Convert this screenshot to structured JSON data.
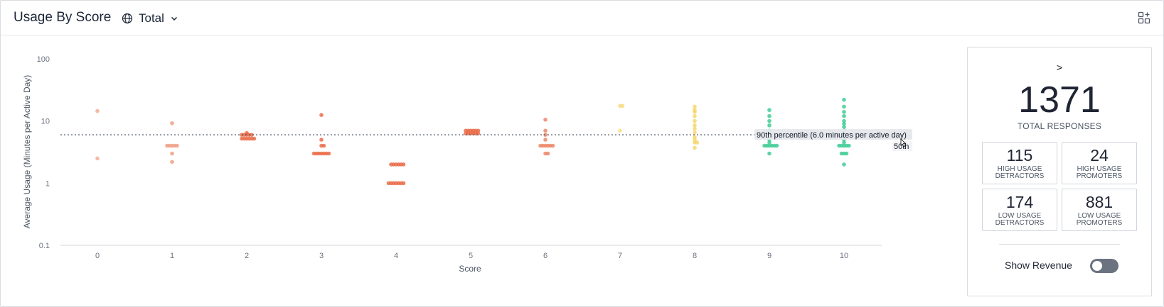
{
  "header": {
    "title": "Usage By Score",
    "scope_label": "Total"
  },
  "chart_data": {
    "type": "scatter",
    "xlabel": "Score",
    "ylabel": "Average Usage (Minutes per Active Day)",
    "x_ticks": [
      "0",
      "1",
      "2",
      "3",
      "4",
      "5",
      "6",
      "7",
      "8",
      "9",
      "10"
    ],
    "y_scale": "log",
    "ylim": [
      0.1,
      100
    ],
    "y_ticks": [
      "0.1",
      "1",
      "10",
      "100"
    ],
    "grid": false,
    "reference_line": {
      "value": 6.0,
      "label": "90th percentile (6.0 minutes per active day)"
    },
    "reference_line_2_label": "50th",
    "series": [
      {
        "x": 0,
        "color": "#f2a78f",
        "y": [
          14.5,
          2.5
        ]
      },
      {
        "x": 1,
        "color": "#ee9a7e",
        "y": [
          9.2,
          4,
          4,
          4,
          4,
          4,
          3,
          2.2
        ]
      },
      {
        "x": 2,
        "color": "#e8643e",
        "y": [
          6.4,
          6,
          6,
          6,
          6,
          6,
          5.2,
          5.2,
          5.2,
          5.2,
          5.2,
          5.2
        ]
      },
      {
        "x": 3,
        "color": "#e8643e",
        "y": [
          12.5,
          5,
          4,
          4,
          3,
          3,
          3,
          3,
          3,
          3,
          3
        ]
      },
      {
        "x": 4,
        "color": "#e8643e",
        "y": [
          2,
          2,
          2,
          2,
          2,
          2,
          1,
          1,
          1,
          1,
          1,
          1,
          1
        ]
      },
      {
        "x": 5,
        "color": "#e8643e",
        "y": [
          7,
          7,
          7,
          7,
          7,
          7,
          6.3,
          6.3,
          6.3,
          6.3,
          6.3,
          6.3
        ]
      },
      {
        "x": 6,
        "color": "#ec8060",
        "y": [
          10.5,
          7,
          6,
          5,
          4,
          4,
          4,
          4,
          4,
          4,
          3,
          3
        ]
      },
      {
        "x": 7,
        "color": "#f7db7a",
        "y": [
          17.5,
          17.5,
          7
        ]
      },
      {
        "x": 8,
        "color": "#f5d567",
        "y": [
          17,
          15,
          14,
          12,
          10,
          8.5,
          7.5,
          6.5,
          5.5,
          5,
          4.5,
          4.5,
          3.7
        ]
      },
      {
        "x": 9,
        "color": "#34c98e",
        "y": [
          15,
          12,
          10,
          8.5,
          7,
          6,
          5,
          4.5,
          4,
          4,
          4,
          4,
          4,
          4,
          3
        ]
      },
      {
        "x": 10,
        "color": "#34c98e",
        "y": [
          22,
          17,
          14,
          12,
          10,
          9,
          8,
          7,
          6,
          5,
          4.5,
          4,
          4,
          4,
          4,
          4,
          3,
          3,
          3,
          2
        ]
      }
    ]
  },
  "side": {
    "caret": ">",
    "total": "1371",
    "total_label": "TOTAL RESPONSES",
    "boxes": [
      {
        "num": "115",
        "line1": "HIGH USAGE",
        "line2": "DETRACTORS"
      },
      {
        "num": "24",
        "line1": "HIGH USAGE",
        "line2": "PROMOTERS"
      },
      {
        "num": "174",
        "line1": "LOW USAGE",
        "line2": "DETRACTORS"
      },
      {
        "num": "881",
        "line1": "LOW USAGE",
        "line2": "PROMOTERS"
      }
    ],
    "toggle_label": "Show Revenue"
  }
}
